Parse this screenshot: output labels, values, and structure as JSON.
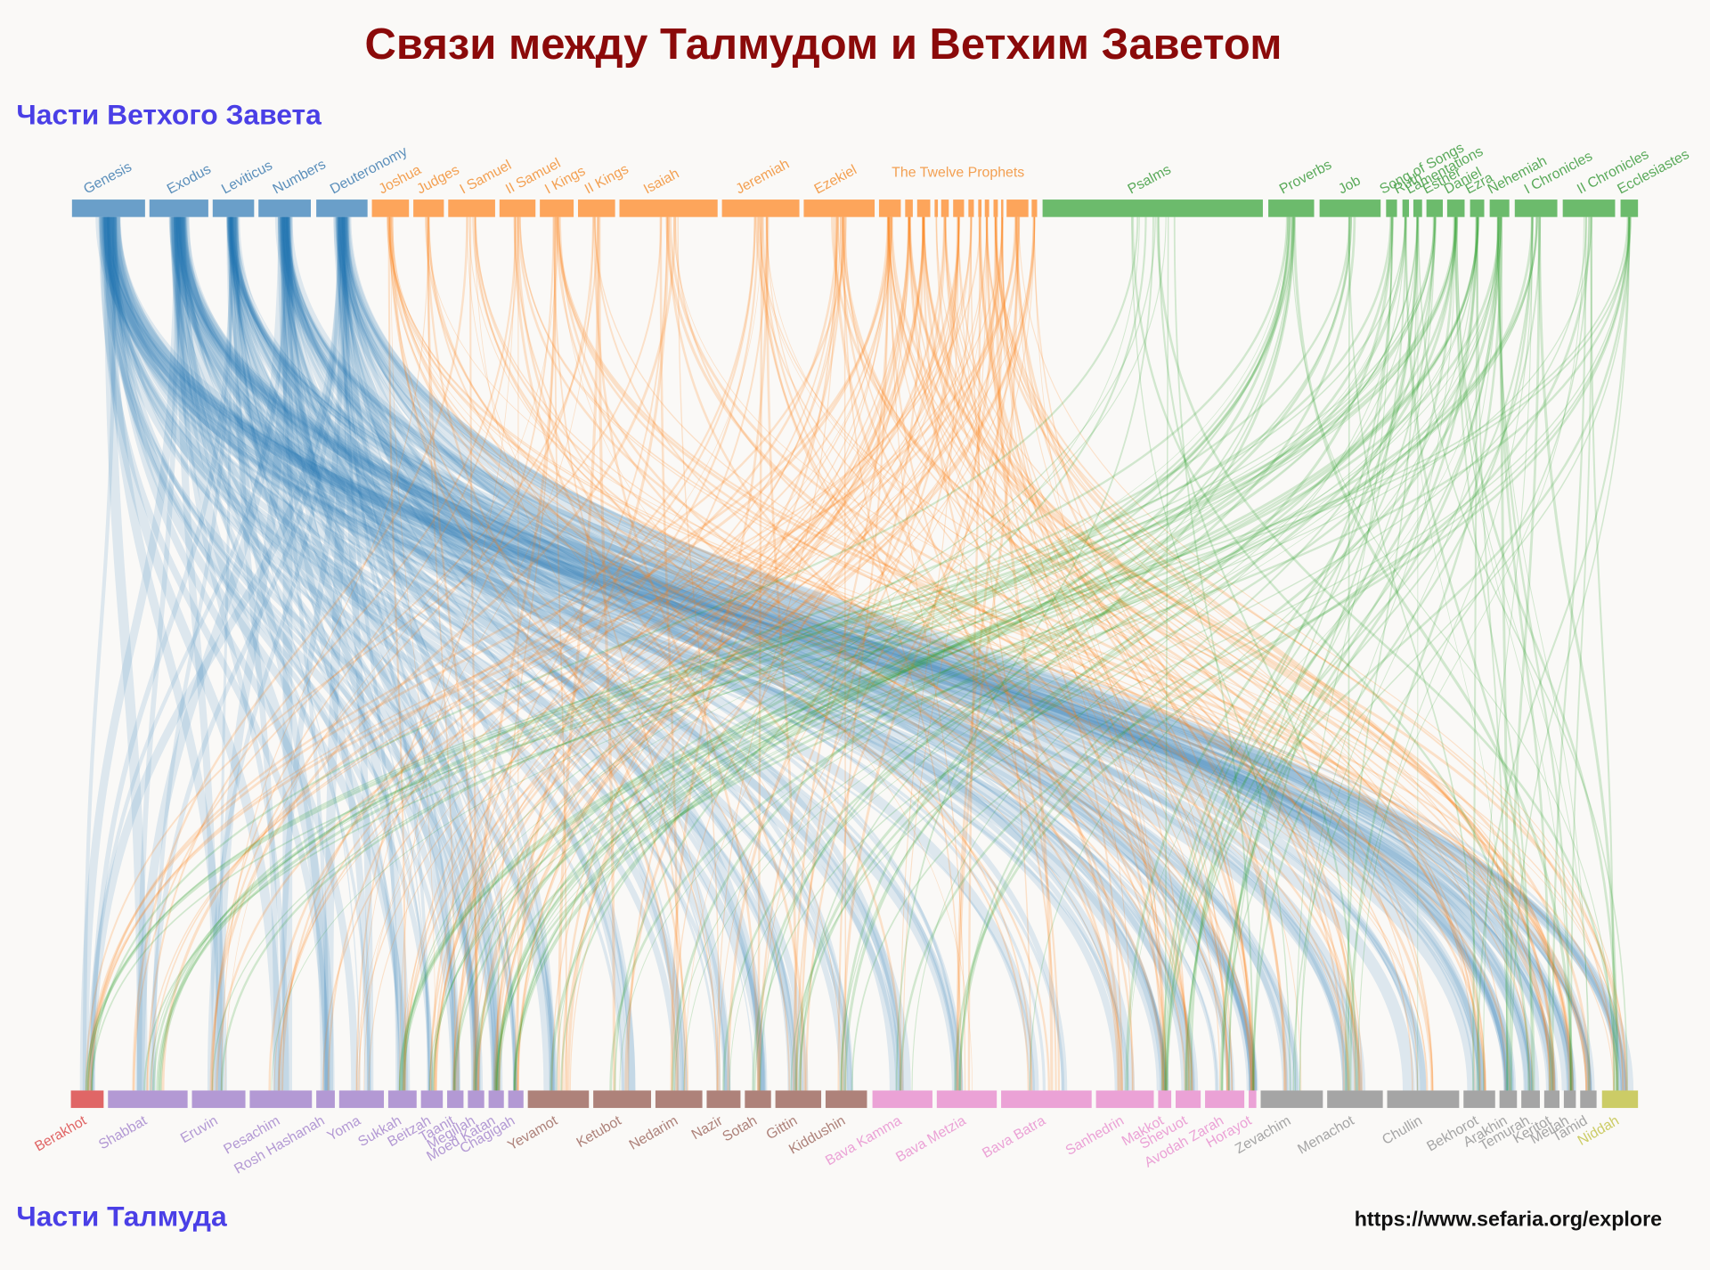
{
  "title": "Связи между Талмудом и Ветхим Заветом",
  "old_testament": {
    "heading": "Части Ветхого Завета",
    "sections": [
      {
        "color": "#6a9fc9",
        "label_color": "#5b8fbb",
        "link_color": "#1f77b4",
        "books": [
          "Genesis",
          "Exodus",
          "Leviticus",
          "Numbers",
          "Deuteronomy"
        ]
      },
      {
        "color": "#fda55b",
        "label_color": "#f3a052",
        "link_color": "#ff7f0e",
        "books": [
          "Joshua",
          "Judges",
          "I Samuel",
          "II Samuel",
          "I Kings",
          "II Kings",
          "Isaiah",
          "Jeremiah",
          "Ezekiel",
          "The Twelve Prophets"
        ]
      },
      {
        "color": "#6cbb6c",
        "label_color": "#5aaa5a",
        "link_color": "#2ca02c",
        "books": [
          "Psalms",
          "Proverbs",
          "Job",
          "Song of Songs",
          "Ruth",
          "Lamentations",
          "Esther",
          "Daniel",
          "Ezra",
          "Nehemiah",
          "I Chronicles",
          "II Chronicles",
          "Ecclesiastes"
        ]
      }
    ]
  },
  "talmud": {
    "heading": "Части Талмуда",
    "sections": [
      {
        "color": "#e06666",
        "tractates": [
          "Berakhot"
        ]
      },
      {
        "color": "#b399d4",
        "tractates": [
          "Shabbat",
          "Eruvin",
          "Pesachim",
          "Rosh Hashanah",
          "Yoma",
          "Sukkah",
          "Beitzah",
          "Taanit",
          "Megillah",
          "Moed Katan",
          "Chagigah"
        ]
      },
      {
        "color": "#ae827a",
        "tractates": [
          "Yevamot",
          "Ketubot",
          "Nedarim",
          "Nazir",
          "Sotah",
          "Gittin",
          "Kiddushin"
        ]
      },
      {
        "color": "#eba2d6",
        "tractates": [
          "Bava Kamma",
          "Bava Metzia",
          "Bava Batra",
          "Sanhedrin",
          "Makkot",
          "Shevuot",
          "Avodah Zarah",
          "Horayot"
        ]
      },
      {
        "color": "#a5a5a5",
        "tractates": [
          "Zevachim",
          "Menachot",
          "Chullin",
          "Bekhorot",
          "Arakhin",
          "Temurah",
          "Keritot",
          "Meilah",
          "Tamid"
        ]
      },
      {
        "color": "#cccc66",
        "tractates": [
          "Niddah"
        ]
      }
    ]
  },
  "url": "https://www.sefaria.org/explore"
}
